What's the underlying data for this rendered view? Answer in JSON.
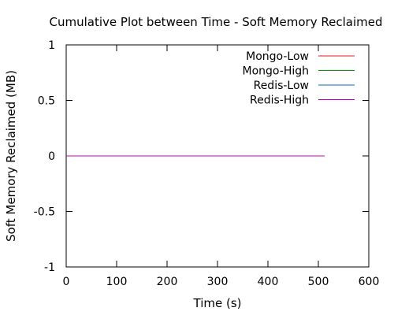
{
  "chart_data": {
    "type": "line",
    "title": "Cumulative Plot between Time - Soft Memory Reclaimed",
    "xlabel": "Time (s)",
    "ylabel": "Soft Memory Reclaimed (MB)",
    "xlim": [
      0,
      600
    ],
    "ylim": [
      -1,
      1
    ],
    "xticks": [
      0,
      100,
      200,
      300,
      400,
      500,
      600
    ],
    "yticks": [
      {
        "value": 1,
        "label": "1"
      },
      {
        "value": 0.5,
        "label": "0.5"
      },
      {
        "value": 0,
        "label": "0"
      },
      {
        "value": -0.5,
        "label": "-0.5"
      },
      {
        "value": -1,
        "label": "-1"
      }
    ],
    "grid": false,
    "legend_position": "top-right",
    "series": [
      {
        "name": "Mongo-Low",
        "color": "#e41a1c",
        "x": [
          0,
          512
        ],
        "y": [
          0,
          0
        ]
      },
      {
        "name": "Mongo-High",
        "color": "#00a000",
        "x": [
          0,
          512
        ],
        "y": [
          0,
          0
        ]
      },
      {
        "name": "Redis-Low",
        "color": "#0072b2",
        "x": [
          0,
          512
        ],
        "y": [
          0,
          0
        ]
      },
      {
        "name": "Redis-High",
        "color": "#c000c0",
        "x": [
          0,
          512
        ],
        "y": [
          0,
          0
        ]
      }
    ]
  }
}
